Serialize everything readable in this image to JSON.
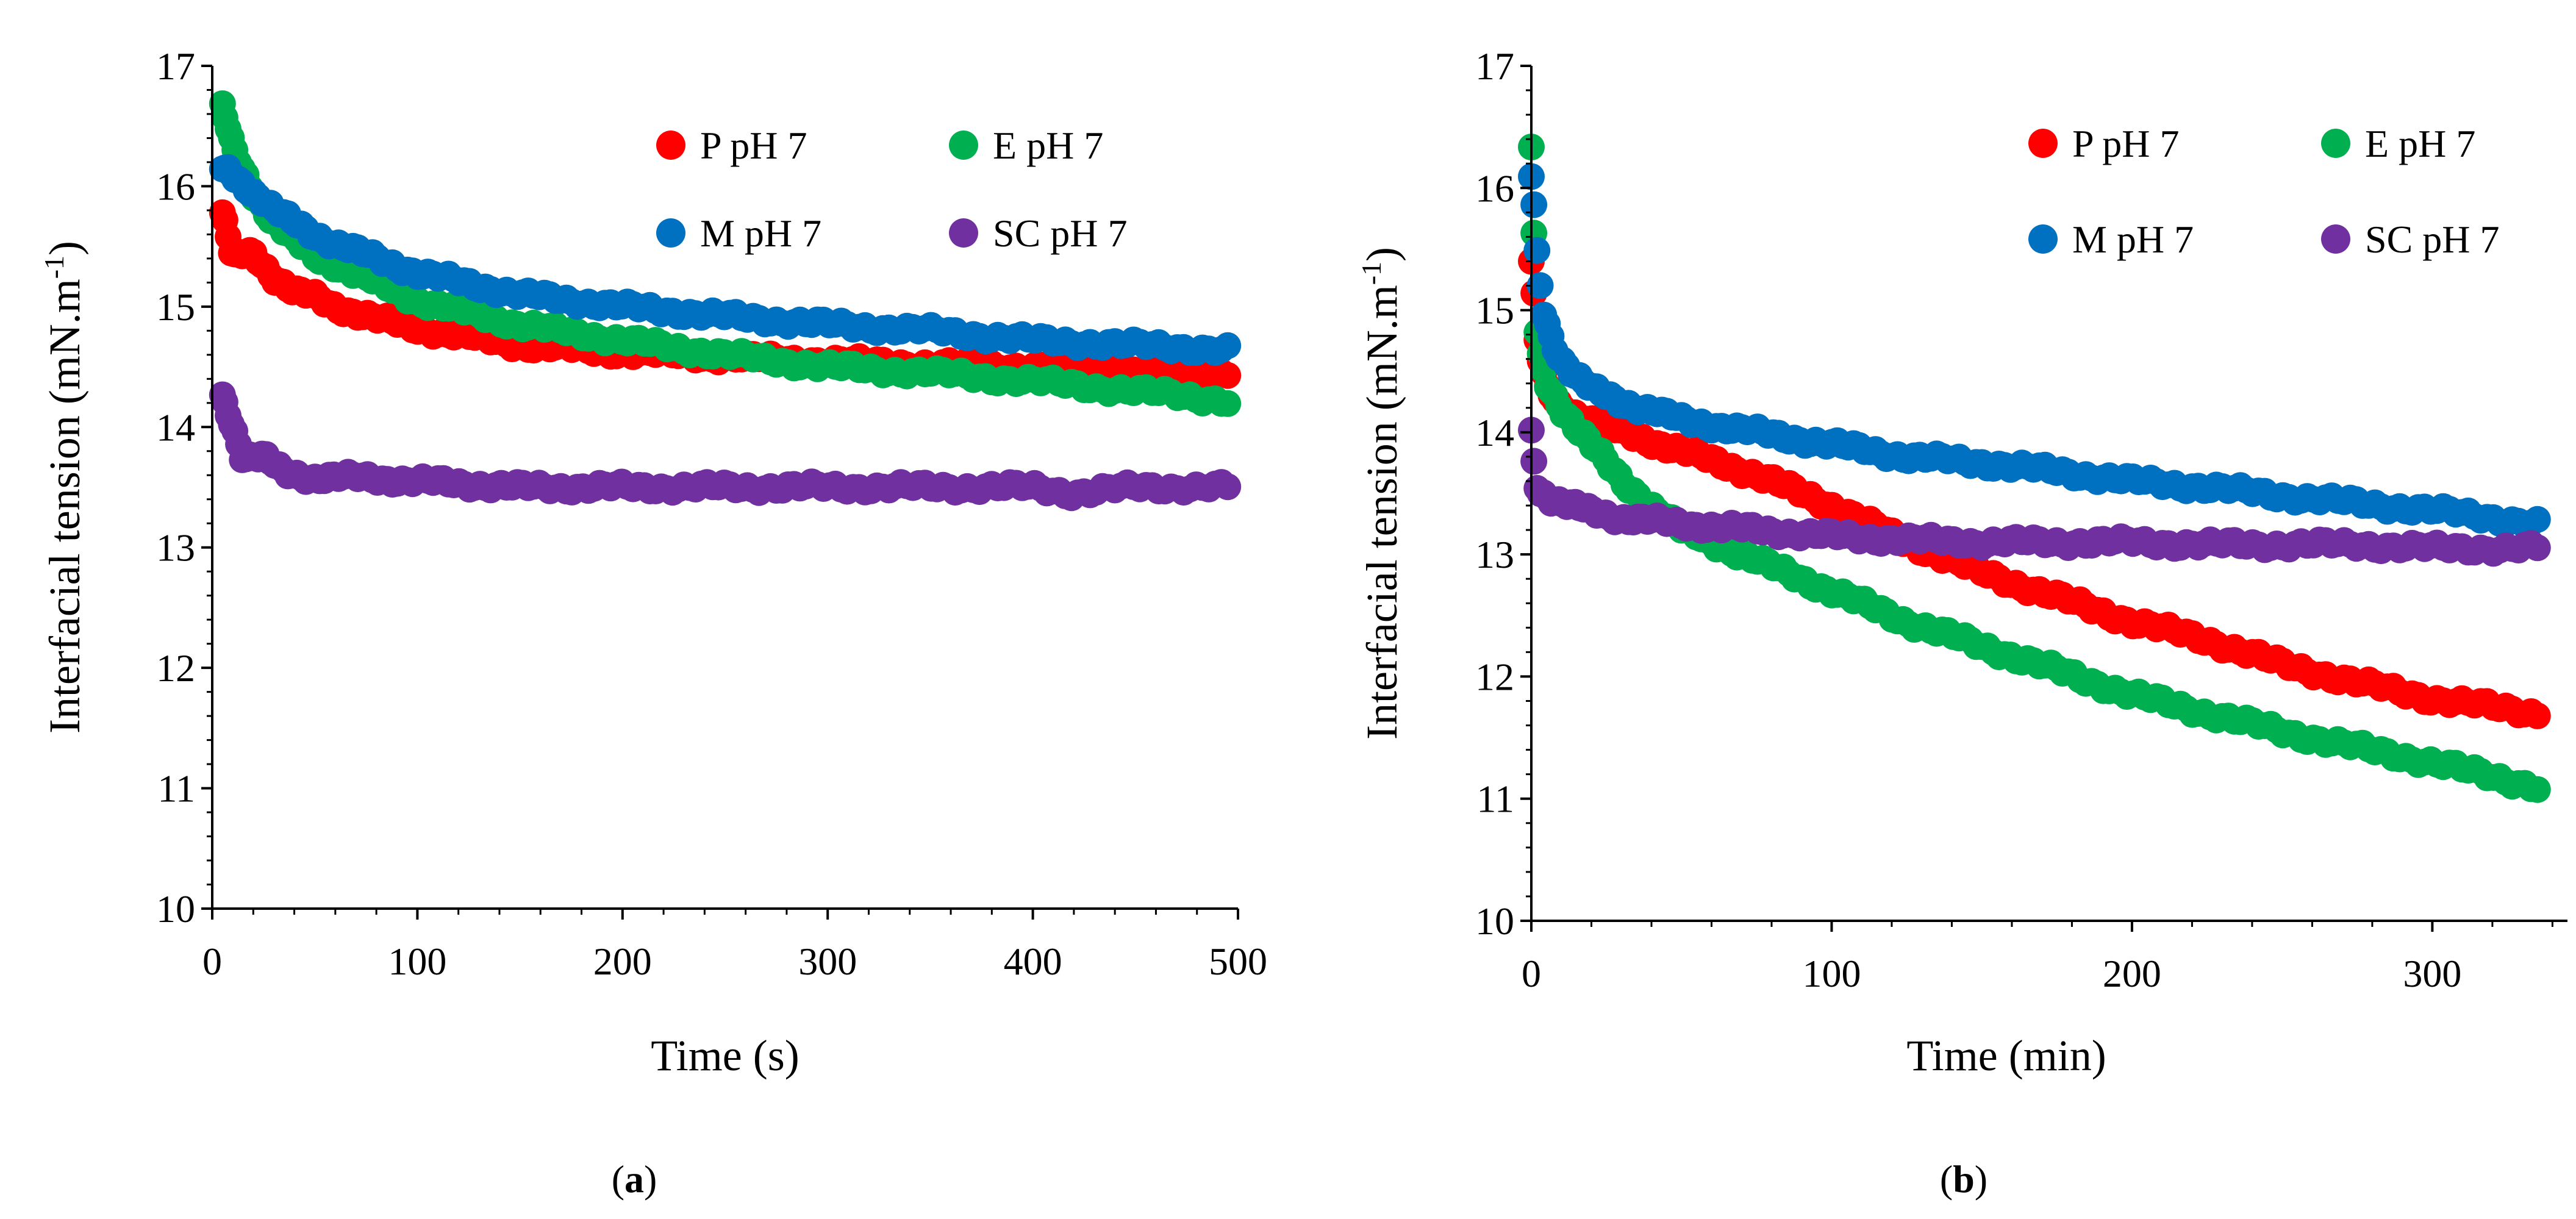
{
  "figure": {
    "panel_labels": [
      {
        "open": "(",
        "letter": "a",
        "close": ")"
      },
      {
        "open": "(",
        "letter": "b",
        "close": ")"
      }
    ]
  },
  "chart_data": [
    {
      "type": "scatter",
      "panel": "a",
      "xlabel": "Time (s)",
      "ylabel_prefix": "Interfacial tension (mN.m",
      "ylabel_sup": "-1",
      "ylabel_suffix": ")",
      "xlim": [
        0,
        500
      ],
      "ylim": [
        10,
        17
      ],
      "xticks": [
        0,
        100,
        200,
        300,
        400,
        500
      ],
      "yticks": [
        10,
        11,
        12,
        13,
        14,
        15,
        16,
        17
      ],
      "grid": false,
      "legend": {
        "placement": "top-right",
        "columns": 2
      },
      "series": [
        {
          "name": "P pH 7",
          "color": "#ff0000",
          "x": [
            5,
            10,
            20,
            30,
            40,
            50,
            60,
            80,
            100,
            150,
            200,
            250,
            300,
            350,
            400,
            450,
            495
          ],
          "y": [
            15.78,
            15.4,
            15.45,
            15.25,
            15.12,
            15.08,
            15.0,
            14.9,
            14.82,
            14.68,
            14.62,
            14.58,
            14.55,
            14.52,
            14.5,
            14.48,
            14.45
          ]
        },
        {
          "name": "E pH 7",
          "color": "#00b050",
          "x": [
            5,
            10,
            20,
            30,
            40,
            50,
            60,
            80,
            100,
            150,
            200,
            250,
            300,
            350,
            400,
            450,
            495
          ],
          "y": [
            16.65,
            16.32,
            15.95,
            15.7,
            15.55,
            15.42,
            15.35,
            15.2,
            15.05,
            14.85,
            14.72,
            14.6,
            14.5,
            14.45,
            14.38,
            14.3,
            14.22
          ]
        },
        {
          "name": "M pH 7",
          "color": "#0070c0",
          "x": [
            5,
            10,
            20,
            30,
            40,
            50,
            60,
            80,
            100,
            150,
            200,
            250,
            300,
            350,
            400,
            450,
            495
          ],
          "y": [
            16.15,
            16.1,
            15.95,
            15.8,
            15.7,
            15.6,
            15.52,
            15.4,
            15.28,
            15.1,
            15.0,
            14.92,
            14.85,
            14.8,
            14.72,
            14.68,
            14.64
          ]
        },
        {
          "name": "SC pH 7",
          "color": "#7030a0",
          "x": [
            5,
            10,
            15,
            25,
            35,
            50,
            75,
            100,
            150,
            200,
            250,
            300,
            350,
            400,
            420,
            450,
            495
          ],
          "y": [
            14.25,
            14.02,
            13.75,
            13.75,
            13.62,
            13.58,
            13.58,
            13.55,
            13.5,
            13.5,
            13.5,
            13.5,
            13.5,
            13.5,
            13.45,
            13.5,
            13.5
          ]
        }
      ]
    },
    {
      "type": "scatter",
      "panel": "b",
      "xlabel": "Time (min)",
      "ylabel_prefix": "Interfacial tension (mN.m",
      "ylabel_sup": "-1",
      "ylabel_suffix": ")",
      "xlim": [
        0,
        345
      ],
      "ylim": [
        10,
        17
      ],
      "xticks": [
        0,
        100,
        200,
        300
      ],
      "yticks": [
        10,
        11,
        12,
        13,
        14,
        15,
        16,
        17
      ],
      "grid": false,
      "legend": {
        "placement": "top-right",
        "columns": 2
      },
      "series": [
        {
          "name": "P pH 7",
          "color": "#ff0000",
          "x": [
            0,
            2,
            5,
            10,
            20,
            30,
            50,
            75,
            100,
            125,
            150,
            175,
            200,
            225,
            250,
            275,
            300,
            320,
            335
          ],
          "y": [
            15.4,
            14.7,
            14.35,
            14.2,
            14.1,
            14.0,
            13.85,
            13.65,
            13.4,
            13.1,
            12.85,
            12.65,
            12.45,
            12.3,
            12.1,
            11.95,
            11.82,
            11.75,
            11.7
          ]
        },
        {
          "name": "E pH 7",
          "color": "#00b050",
          "x": [
            0,
            2,
            5,
            10,
            20,
            30,
            50,
            75,
            100,
            125,
            150,
            175,
            200,
            225,
            250,
            275,
            300,
            320,
            335
          ],
          "y": [
            16.3,
            14.7,
            14.4,
            14.2,
            13.9,
            13.6,
            13.2,
            12.95,
            12.7,
            12.45,
            12.25,
            12.05,
            11.85,
            11.7,
            11.55,
            11.42,
            11.3,
            11.18,
            11.1
          ]
        },
        {
          "name": "M pH 7",
          "color": "#0070c0",
          "x": [
            0,
            1,
            2,
            4,
            7,
            10,
            15,
            20,
            30,
            50,
            75,
            100,
            125,
            150,
            175,
            200,
            225,
            250,
            275,
            300,
            320,
            335
          ],
          "y": [
            16.1,
            15.8,
            15.4,
            15.0,
            14.75,
            14.6,
            14.45,
            14.35,
            14.25,
            14.1,
            14.0,
            13.9,
            13.8,
            13.75,
            13.68,
            13.6,
            13.55,
            13.48,
            13.42,
            13.36,
            13.3,
            13.25
          ]
        },
        {
          "name": "SC pH 7",
          "color": "#7030a0",
          "x": [
            0,
            1,
            2,
            5,
            10,
            20,
            30,
            50,
            75,
            100,
            125,
            150,
            175,
            200,
            225,
            250,
            275,
            300,
            320,
            335
          ],
          "y": [
            14.0,
            13.7,
            13.55,
            13.48,
            13.42,
            13.35,
            13.3,
            13.25,
            13.2,
            13.15,
            13.12,
            13.1,
            13.1,
            13.1,
            13.08,
            13.08,
            13.08,
            13.05,
            13.05,
            13.05
          ]
        }
      ]
    }
  ]
}
